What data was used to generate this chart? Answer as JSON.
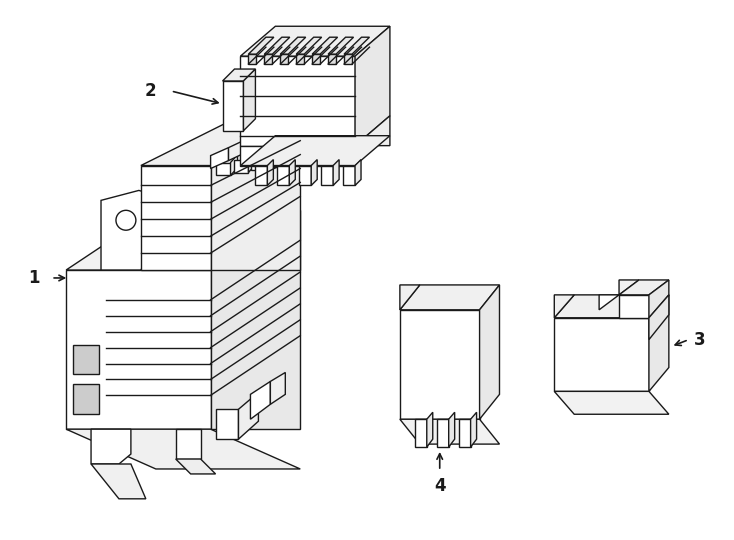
{
  "bg_color": "#ffffff",
  "line_color": "#1a1a1a",
  "lw": 1.0,
  "figsize": [
    7.34,
    5.4
  ],
  "dpi": 100
}
